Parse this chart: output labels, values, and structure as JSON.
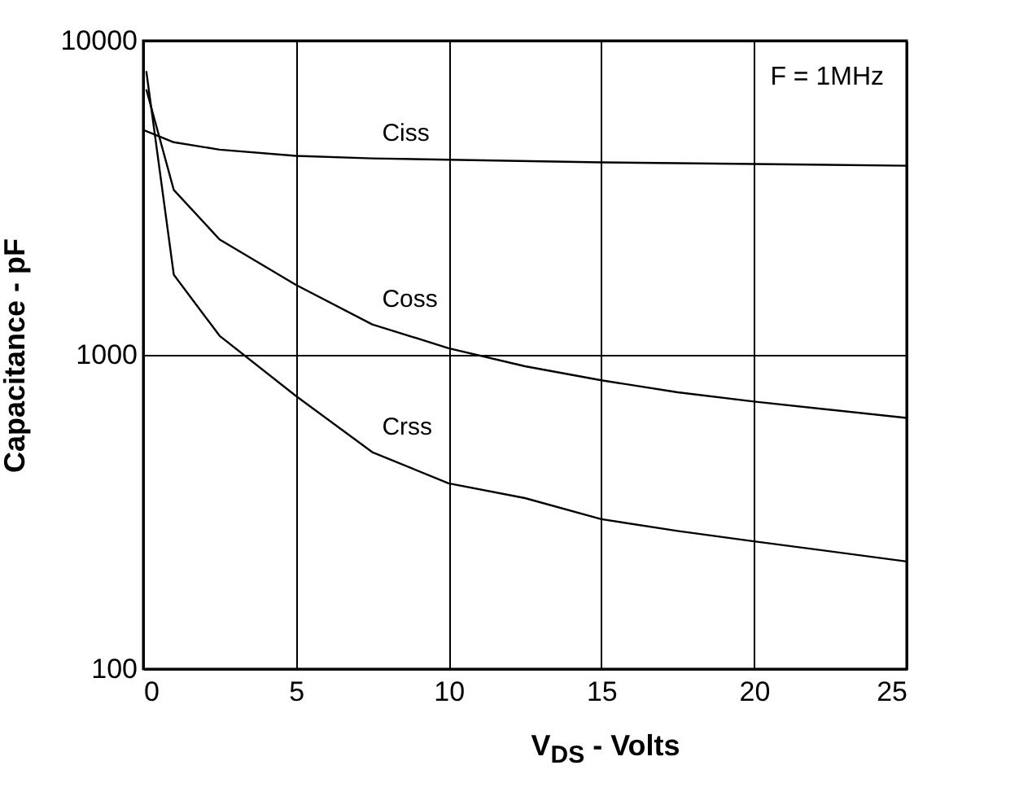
{
  "chart_data": {
    "type": "line",
    "xlabel": "V$_{DS}$ - Volts",
    "ylabel": "Capacitance - pF",
    "annotations": [
      "F = 1MHz"
    ],
    "series": [
      {
        "name": "Ciss",
        "color": "#000000",
        "x": [
          0,
          1,
          2.5,
          5,
          7.5,
          10,
          15,
          20,
          25
        ],
        "values": [
          5200,
          4750,
          4500,
          4300,
          4220,
          4180,
          4100,
          4050,
          4000
        ]
      },
      {
        "name": "Coss",
        "color": "#000000",
        "x": [
          0.1,
          1,
          2.5,
          5,
          7.5,
          10,
          12.5,
          15,
          17.5,
          20,
          25
        ],
        "values": [
          7000,
          3350,
          2330,
          1670,
          1250,
          1050,
          920,
          830,
          760,
          710,
          630
        ]
      },
      {
        "name": "Crss",
        "color": "#000000",
        "x": [
          0.1,
          1,
          2.5,
          5,
          7.5,
          10,
          12.5,
          15,
          17.5,
          20,
          25
        ],
        "values": [
          8000,
          1800,
          1150,
          740,
          490,
          390,
          350,
          300,
          275,
          255,
          220
        ]
      }
    ],
    "xlim": [
      0,
      25
    ],
    "xticks": [
      0,
      5,
      10,
      15,
      20,
      25
    ],
    "ylim": [
      100,
      10000
    ],
    "yticks": [
      100,
      1000,
      10000
    ],
    "log": "y",
    "grid": true,
    "legend": false,
    "marker": "none",
    "line_style": "solid"
  }
}
